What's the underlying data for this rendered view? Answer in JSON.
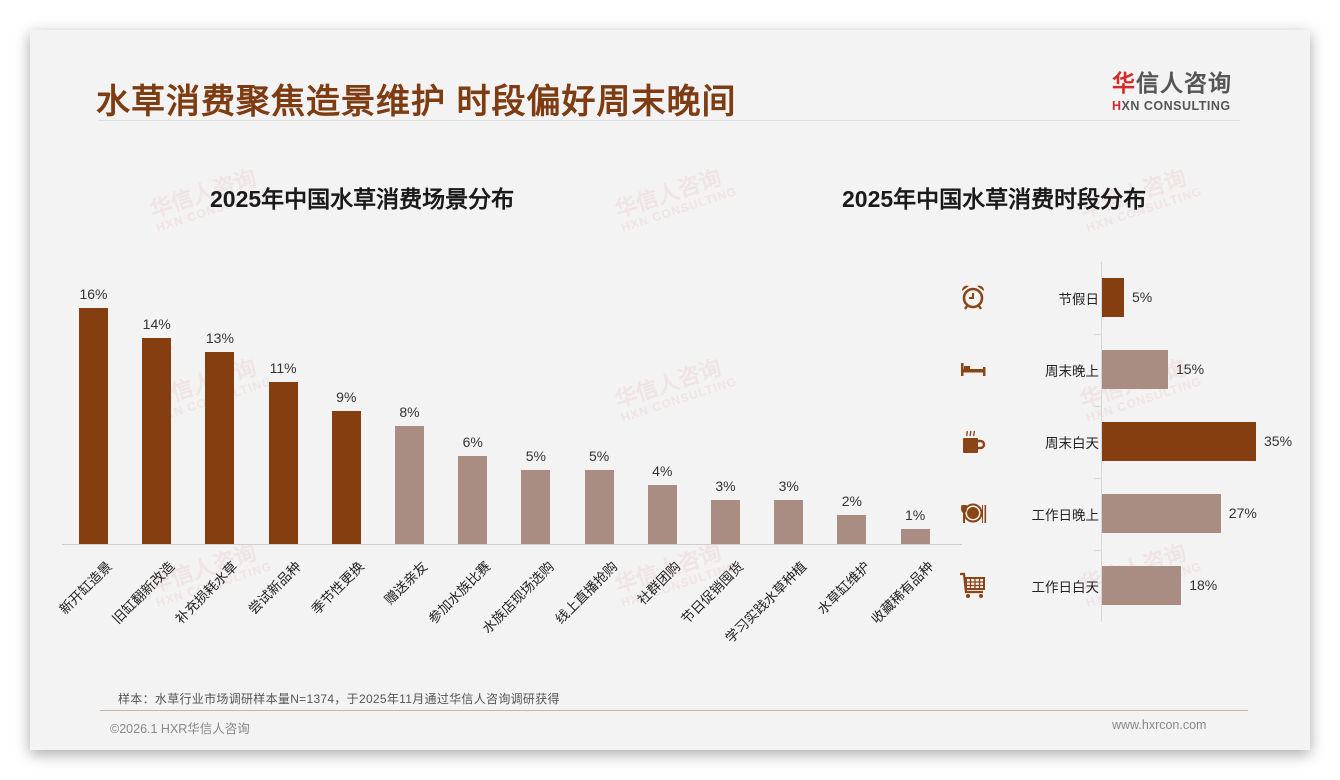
{
  "header": {
    "title": "水草消费聚焦造景维护 时段偏好周末晚间",
    "logo_cn_prefix": "华",
    "logo_cn_rest": "信人咨询",
    "logo_en_prefix": "H",
    "logo_en_rest": "XN CONSULTING"
  },
  "watermark": {
    "cn": "华信人咨询",
    "en": "HXN CONSULTING"
  },
  "colors": {
    "title_brown": "#7e3c12",
    "bar_dark": "#843e0f",
    "bar_light": "#a98c82",
    "icon_brown": "#8b4416",
    "logo_red": "#d22a2a"
  },
  "chart_data": [
    {
      "type": "bar",
      "title": "2025年中国水草消费场景分布",
      "xlabel": "",
      "ylabel": "",
      "ylim": [
        0,
        16
      ],
      "grid": false,
      "legend": "none",
      "categories": [
        "新开缸造景",
        "旧缸翻新改造",
        "补充损耗水草",
        "尝试新品种",
        "季节性更换",
        "赠送亲友",
        "参加水族比赛",
        "水族店现场选购",
        "线上直播抢购",
        "社群团购",
        "节日促销囤货",
        "学习实践水草种植",
        "水草缸维护",
        "收藏稀有品种"
      ],
      "values": [
        16,
        14,
        13,
        11,
        9,
        8,
        6,
        5,
        5,
        4,
        3,
        3,
        2,
        1
      ],
      "value_labels": [
        "16%",
        "14%",
        "13%",
        "11%",
        "9%",
        "8%",
        "6%",
        "5%",
        "5%",
        "4%",
        "3%",
        "3%",
        "2%",
        "1%"
      ],
      "highlight": [
        true,
        true,
        true,
        true,
        true,
        false,
        false,
        false,
        false,
        false,
        false,
        false,
        false,
        false
      ]
    },
    {
      "type": "bar",
      "orientation": "horizontal",
      "title": "2025年中国水草消费时段分布",
      "xlabel": "",
      "ylabel": "",
      "xlim": [
        0,
        35
      ],
      "grid": false,
      "legend": "none",
      "categories": [
        "节假日",
        "周末晚上",
        "周末白天",
        "工作日晚上",
        "工作日白天"
      ],
      "values": [
        5,
        15,
        35,
        27,
        18
      ],
      "value_labels": [
        "5%",
        "15%",
        "35%",
        "27%",
        "18%"
      ],
      "icons": [
        "alarm-clock-icon",
        "bed-icon",
        "coffee-mug-icon",
        "plate-cutlery-icon",
        "shopping-cart-icon"
      ],
      "highlight": [
        true,
        false,
        true,
        false,
        false
      ]
    }
  ],
  "footer": {
    "note": "样本：水草行业市场调研样本量N=1374，于2025年11月通过华信人咨询调研获得",
    "copyright": "©2026.1 HXR华信人咨询",
    "website": "www.hxrcon.com"
  }
}
